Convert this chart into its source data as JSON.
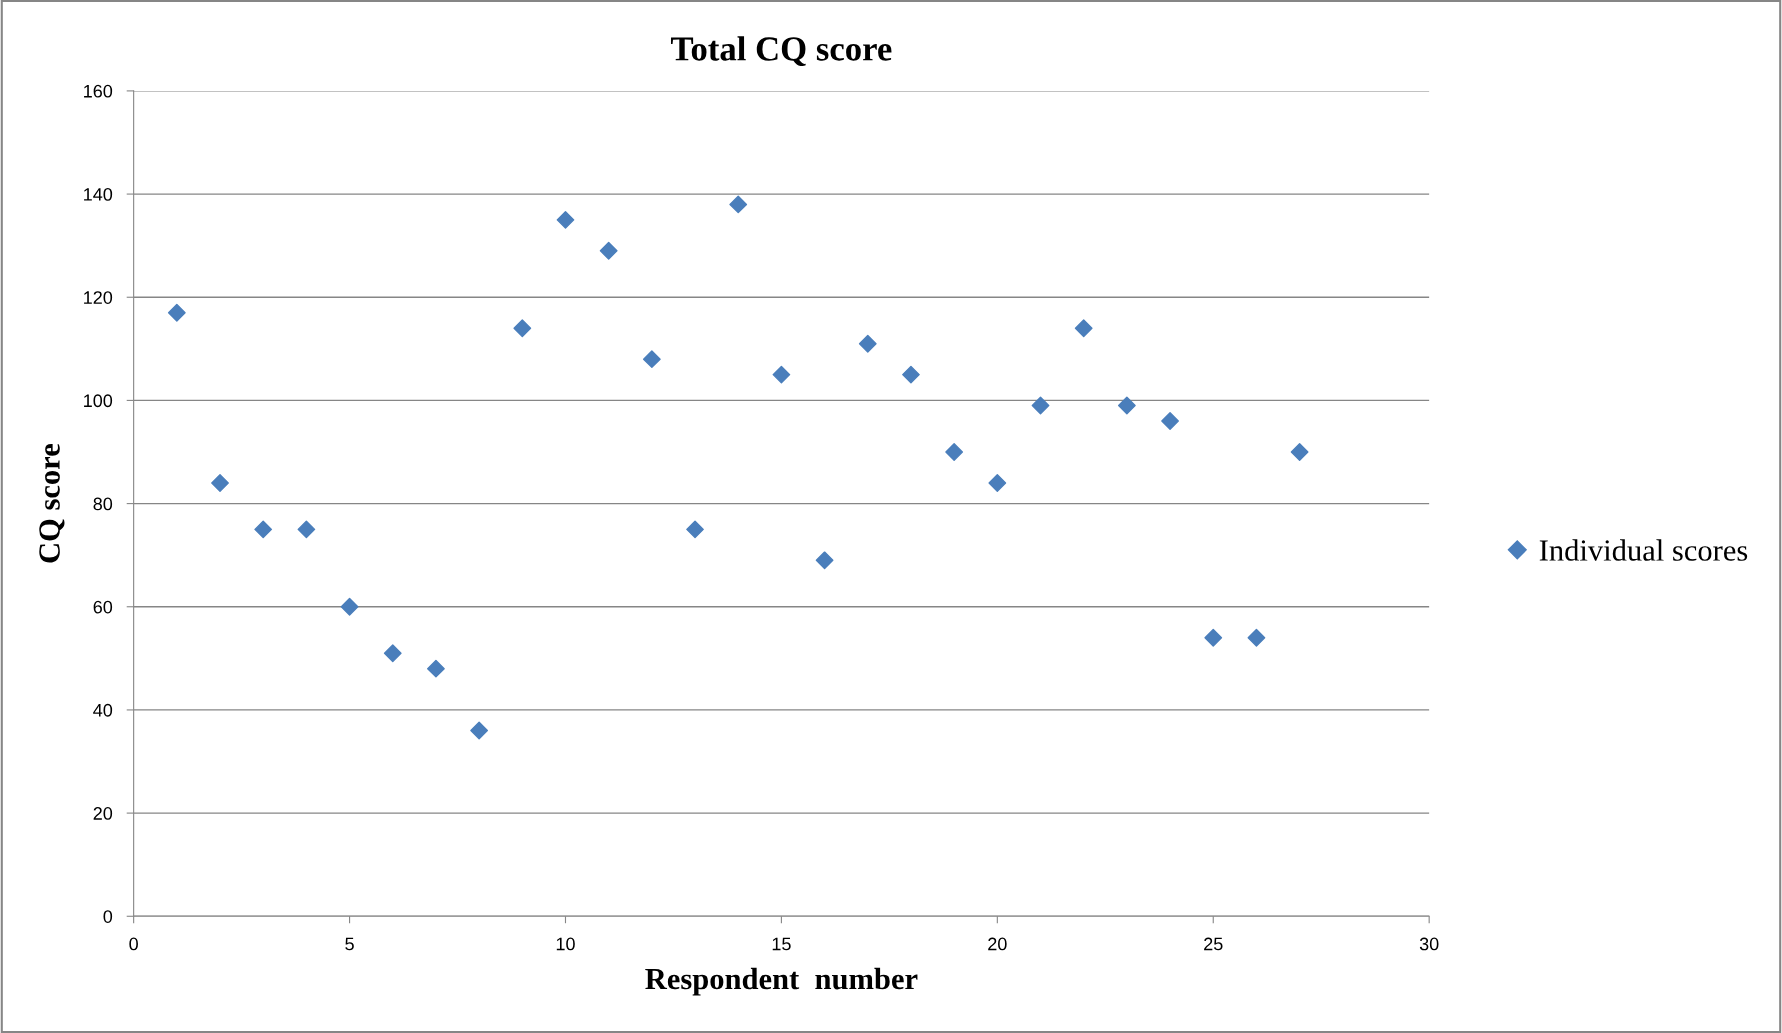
{
  "chart_data": {
    "type": "scatter",
    "title": "Total CQ score",
    "xlabel": "Respondent  number",
    "ylabel": "CQ score",
    "x": [
      1,
      2,
      3,
      4,
      5,
      6,
      7,
      8,
      9,
      10,
      11,
      12,
      13,
      14,
      15,
      16,
      17,
      18,
      19,
      20,
      21,
      22,
      23,
      24,
      25,
      26,
      27
    ],
    "series": [
      {
        "name": "Individual scores",
        "color": "#4a7ebb",
        "values": [
          117,
          84,
          75,
          75,
          60,
          51,
          48,
          36,
          114,
          135,
          129,
          108,
          75,
          138,
          105,
          69,
          111,
          105,
          90,
          84,
          99,
          114,
          99,
          96,
          54,
          54,
          90
        ]
      }
    ],
    "xlim": [
      0,
      30
    ],
    "xticks": [
      0,
      5,
      10,
      15,
      20,
      25,
      30
    ],
    "ylim": [
      0,
      160
    ],
    "yticks": [
      0,
      20,
      40,
      60,
      80,
      100,
      120,
      140,
      160
    ],
    "grid": "y",
    "legend": "right",
    "marker": "diamond"
  }
}
